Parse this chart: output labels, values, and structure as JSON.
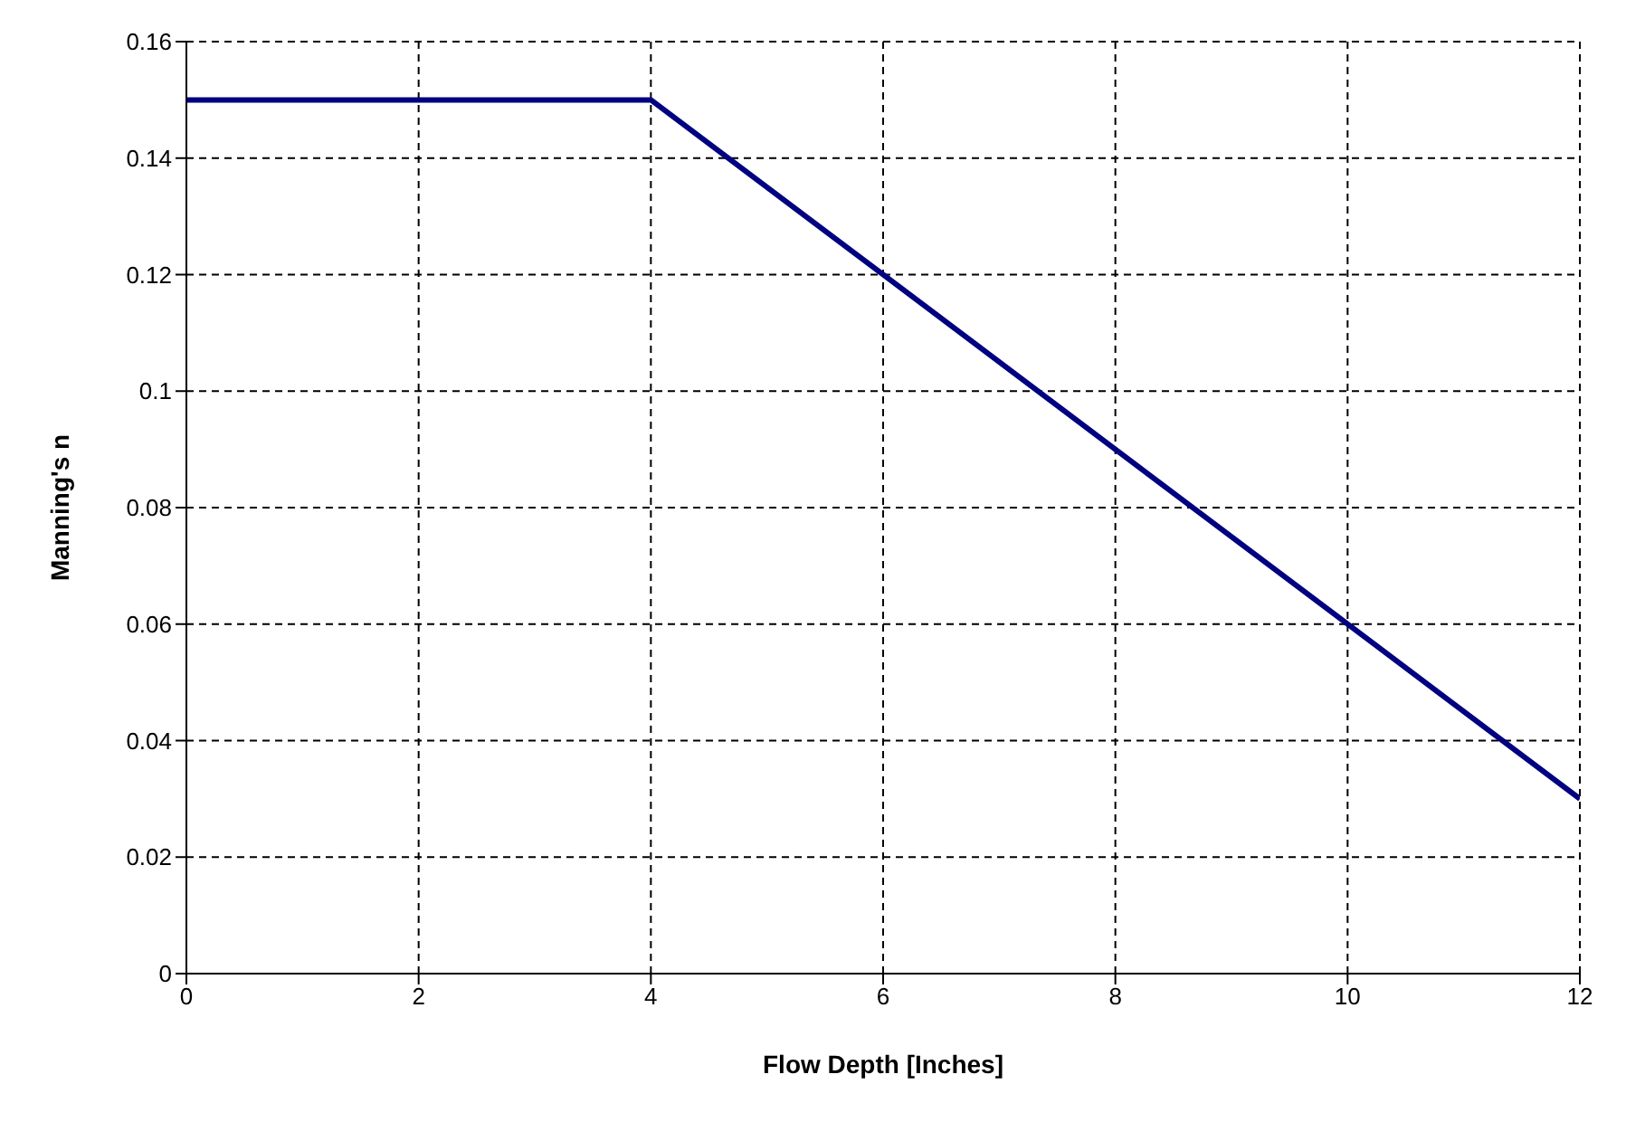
{
  "chart_data": {
    "type": "line",
    "xlabel": "Flow Depth [Inches]",
    "ylabel": "Manning's n",
    "x": [
      0,
      4,
      12
    ],
    "series": [
      {
        "color": "#000080",
        "values": [
          0.15,
          0.15,
          0.03
        ]
      }
    ],
    "xlim": [
      0,
      12
    ],
    "xticks": [
      0,
      2,
      4,
      6,
      8,
      10,
      12
    ],
    "ylim": [
      0,
      0.16
    ],
    "yticks": [
      0,
      0.02,
      0.04,
      0.06,
      0.08,
      0.1,
      0.12,
      0.14,
      0.16
    ],
    "grid": true,
    "marker": "none",
    "line_style": "solid"
  }
}
